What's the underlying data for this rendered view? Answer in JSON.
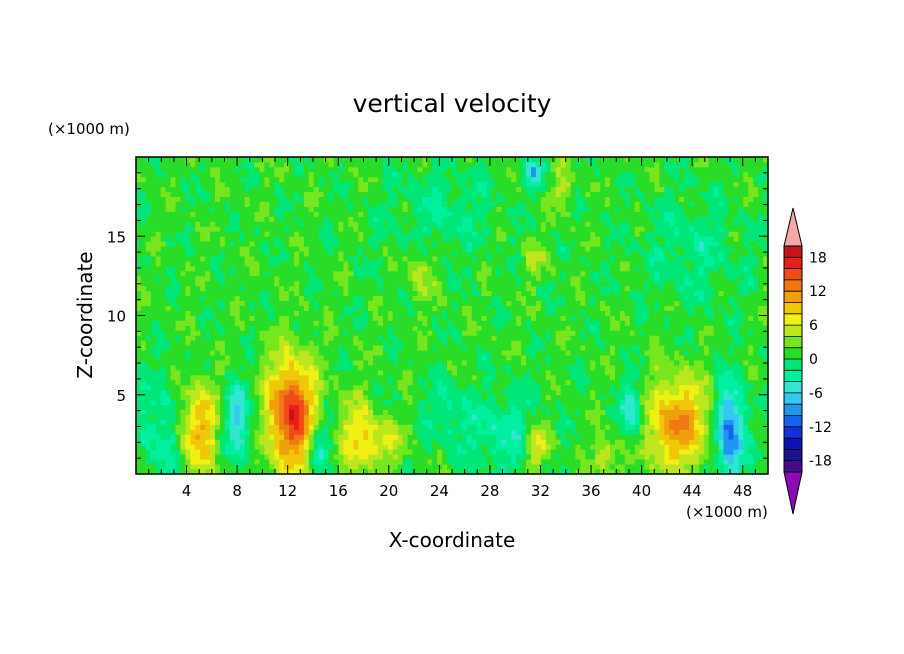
{
  "chart_data": {
    "type": "contour",
    "title": "vertical velocity",
    "xlabel": "X-coordinate",
    "ylabel": "Z-coordinate",
    "x_unit": "(×1000 m)",
    "y_unit": "(×1000 m)",
    "xlim": [
      0,
      50
    ],
    "ylim": [
      0,
      20
    ],
    "x_ticks": [
      4,
      8,
      12,
      16,
      20,
      24,
      28,
      32,
      36,
      40,
      44,
      48
    ],
    "y_ticks": [
      5,
      10,
      15
    ],
    "colorbar": {
      "levels": [
        -20,
        -18,
        -16,
        -14,
        -12,
        -10,
        -8,
        -6,
        -4,
        -2,
        0,
        2,
        4,
        6,
        8,
        10,
        12,
        14,
        16,
        18,
        20
      ],
      "tick_labels": [
        18,
        12,
        6,
        0,
        -6,
        -12,
        -18
      ],
      "colors": [
        "#4b0a8c",
        "#19128c",
        "#1010b4",
        "#1432dc",
        "#1464f0",
        "#1e96f0",
        "#32c8f0",
        "#32e6d2",
        "#00f0a0",
        "#00e678",
        "#28dc28",
        "#78e61e",
        "#bee61e",
        "#f0f014",
        "#f0c80a",
        "#f0a00a",
        "#f07814",
        "#f04b14",
        "#e61e1e",
        "#c81414"
      ],
      "over_color": "#f4a8a8",
      "under_color": "#8c0ab4"
    },
    "features": [
      {
        "x": 4.8,
        "z": 2.8,
        "sx": 1.2,
        "sz": 2.0,
        "w": 10
      },
      {
        "x": 12.3,
        "z": 3.8,
        "sx": 1.3,
        "sz": 2.4,
        "w": 16
      },
      {
        "x": 42.8,
        "z": 3.2,
        "sx": 1.8,
        "sz": 2.0,
        "w": 11
      },
      {
        "x": 17.5,
        "z": 2.5,
        "sx": 1.0,
        "sz": 1.6,
        "w": 6
      },
      {
        "x": 19.3,
        "z": 2.0,
        "sx": 1.2,
        "sz": 1.0,
        "w": 5
      },
      {
        "x": 31.8,
        "z": 1.8,
        "sx": 0.7,
        "sz": 1.0,
        "w": 7
      },
      {
        "x": 37.2,
        "z": 1.2,
        "sx": 0.7,
        "sz": 0.9,
        "w": 5
      },
      {
        "x": 22.5,
        "z": 12.8,
        "sx": 0.7,
        "sz": 1.2,
        "w": 4
      },
      {
        "x": 33.7,
        "z": 18.0,
        "sx": 0.6,
        "sz": 0.9,
        "w": 4
      },
      {
        "x": 31.5,
        "z": 13.5,
        "sx": 0.7,
        "sz": 0.8,
        "w": 3
      },
      {
        "x": 2.5,
        "z": 2.5,
        "sx": 1.4,
        "sz": 2.5,
        "w": -5
      },
      {
        "x": 8.0,
        "z": 3.3,
        "sx": 0.8,
        "sz": 1.7,
        "w": -7
      },
      {
        "x": 14.5,
        "z": 1.8,
        "sx": 0.6,
        "sz": 1.2,
        "w": -6
      },
      {
        "x": 29.0,
        "z": 2.6,
        "sx": 2.2,
        "sz": 1.8,
        "w": -4
      },
      {
        "x": 39.3,
        "z": 4.0,
        "sx": 0.7,
        "sz": 1.4,
        "w": -7
      },
      {
        "x": 47.0,
        "z": 2.6,
        "sx": 0.8,
        "sz": 2.2,
        "w": -12
      },
      {
        "x": 31.5,
        "z": 19.0,
        "sx": 0.5,
        "sz": 0.6,
        "w": -7
      },
      {
        "x": 24.5,
        "z": 4.0,
        "sx": 1.2,
        "sz": 1.3,
        "w": -3
      },
      {
        "x": 44.0,
        "z": 14.0,
        "sx": 3.0,
        "sz": 2.5,
        "w": -2.5
      },
      {
        "x": 24.0,
        "z": 16.5,
        "sx": 3.0,
        "sz": 2.0,
        "w": -2.5
      }
    ]
  }
}
